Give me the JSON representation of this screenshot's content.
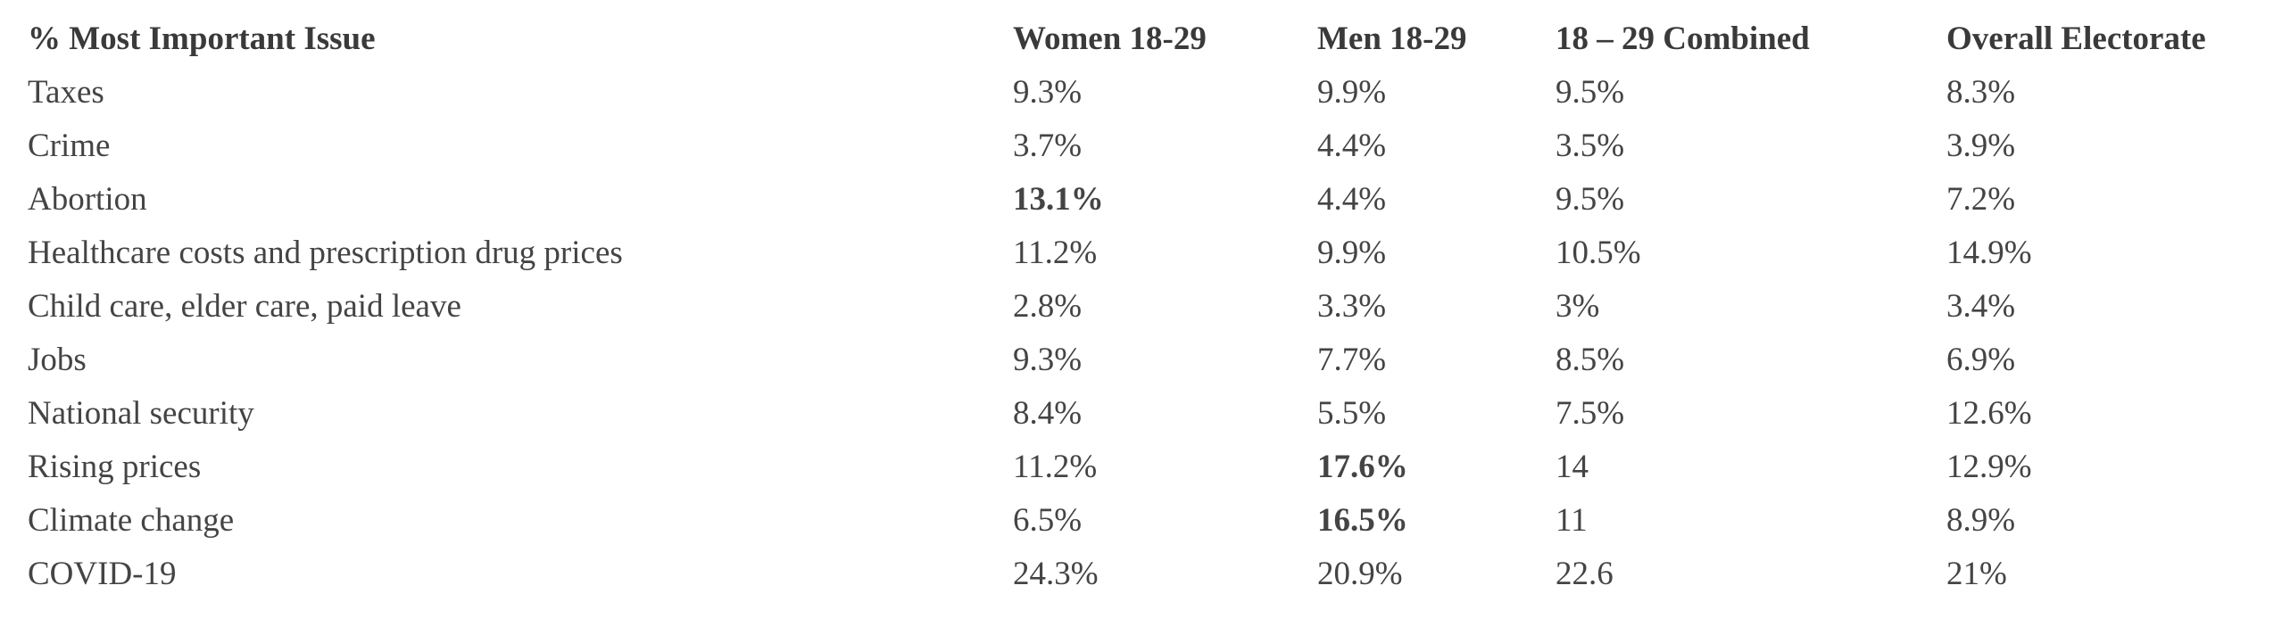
{
  "table": {
    "header": [
      "% Most Important Issue",
      "Women 18-29",
      "Men 18-29",
      "18 – 29 Combined",
      "Overall Electorate"
    ],
    "rows": [
      {
        "cells": [
          "Taxes",
          "9.3%",
          "9.9%",
          "9.5%",
          "8.3%"
        ],
        "bold": []
      },
      {
        "cells": [
          "Crime",
          "3.7%",
          "4.4%",
          "3.5%",
          "3.9%"
        ],
        "bold": []
      },
      {
        "cells": [
          "Abortion",
          "13.1%",
          "4.4%",
          "9.5%",
          "7.2%"
        ],
        "bold": [
          1
        ]
      },
      {
        "cells": [
          "Healthcare costs and prescription drug prices",
          "11.2%",
          "9.9%",
          "10.5%",
          "14.9%"
        ],
        "bold": []
      },
      {
        "cells": [
          "Child care, elder care, paid leave",
          "2.8%",
          "3.3%",
          "3%",
          "3.4%"
        ],
        "bold": []
      },
      {
        "cells": [
          "Jobs",
          "9.3%",
          "7.7%",
          "8.5%",
          "6.9%"
        ],
        "bold": []
      },
      {
        "cells": [
          "National security",
          "8.4%",
          "5.5%",
          "7.5%",
          "12.6%"
        ],
        "bold": []
      },
      {
        "cells": [
          "Rising prices",
          "11.2%",
          "17.6%",
          "14",
          "12.9%"
        ],
        "bold": [
          2
        ]
      },
      {
        "cells": [
          "Climate change",
          "6.5%",
          "16.5%",
          "11",
          "8.9%"
        ],
        "bold": [
          2
        ]
      },
      {
        "cells": [
          "COVID-19",
          "24.3%",
          "20.9%",
          "22.6",
          "21%"
        ],
        "bold": []
      }
    ]
  }
}
